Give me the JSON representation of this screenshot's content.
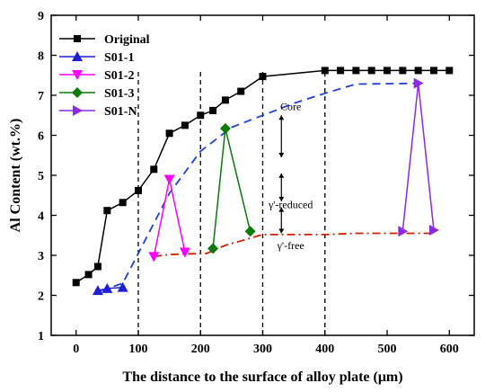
{
  "chart_data": {
    "type": "line",
    "xlabel": "The distance to the surface of alloy plate (μm)",
    "ylabel": "Al Content (wt.%)",
    "xlim": [
      -40,
      640
    ],
    "ylim": [
      1,
      9
    ],
    "xticks": [
      0,
      100,
      200,
      300,
      400,
      500,
      600
    ],
    "yticks": [
      1,
      2,
      3,
      4,
      5,
      6,
      7,
      8,
      9
    ],
    "legend": {
      "position": "top-left"
    },
    "series": [
      {
        "name": "Original",
        "color": "#000000",
        "marker": "square",
        "points": [
          [
            0,
            2.32
          ],
          [
            20,
            2.52
          ],
          [
            35,
            2.72
          ],
          [
            50,
            4.12
          ],
          [
            75,
            4.32
          ],
          [
            100,
            4.62
          ],
          [
            125,
            5.15
          ],
          [
            150,
            6.05
          ],
          [
            175,
            6.25
          ],
          [
            200,
            6.5
          ],
          [
            220,
            6.62
          ],
          [
            240,
            6.88
          ],
          [
            265,
            7.1
          ],
          [
            300,
            7.47
          ],
          [
            400,
            7.62
          ],
          [
            425,
            7.62
          ],
          [
            450,
            7.62
          ],
          [
            475,
            7.62
          ],
          [
            500,
            7.62
          ],
          [
            525,
            7.62
          ],
          [
            550,
            7.62
          ],
          [
            575,
            7.62
          ],
          [
            600,
            7.62
          ]
        ]
      },
      {
        "name": "S01-1",
        "color": "#1f1fd6",
        "marker": "triangle-up",
        "points": [
          [
            35,
            2.12
          ],
          [
            50,
            2.17
          ],
          [
            75,
            2.2
          ]
        ]
      },
      {
        "name": "S01-2",
        "color": "#ff00ff",
        "marker": "triangle-down",
        "points": [
          [
            125,
            2.97
          ],
          [
            150,
            4.9
          ],
          [
            175,
            3.08
          ]
        ]
      },
      {
        "name": "S01-3",
        "color": "#0a7a0a",
        "marker": "diamond",
        "points": [
          [
            220,
            3.17
          ],
          [
            240,
            6.17
          ],
          [
            280,
            3.6
          ]
        ]
      },
      {
        "name": "S01-N",
        "color": "#8a2be2",
        "marker": "triangle-right",
        "points": [
          [
            525,
            3.6
          ],
          [
            550,
            7.3
          ],
          [
            575,
            3.63
          ]
        ]
      }
    ],
    "reference_curves": [
      {
        "role": "core",
        "color": "#1f3fd6",
        "style": "dashed",
        "points": [
          [
            40,
            2.12
          ],
          [
            75,
            2.3
          ],
          [
            100,
            3.05
          ],
          [
            150,
            4.55
          ],
          [
            200,
            5.6
          ],
          [
            250,
            6.2
          ],
          [
            300,
            6.5
          ],
          [
            350,
            6.8
          ],
          [
            400,
            7.05
          ],
          [
            450,
            7.28
          ],
          [
            550,
            7.3
          ]
        ]
      },
      {
        "role": "gamma-prime-free",
        "color": "#cc2200",
        "style": "dash-dot",
        "points": [
          [
            125,
            2.97
          ],
          [
            150,
            3.02
          ],
          [
            210,
            3.05
          ],
          [
            240,
            3.25
          ],
          [
            300,
            3.52
          ],
          [
            400,
            3.52
          ],
          [
            450,
            3.55
          ],
          [
            575,
            3.55
          ]
        ]
      }
    ],
    "vertical_lines_x": [
      100,
      200,
      300,
      400
    ],
    "annotations": [
      {
        "text": "Core",
        "x": 345,
        "y": 6.72
      },
      {
        "text": "γ'-reduced",
        "x": 345,
        "y": 4.27
      },
      {
        "text": "γ'-free",
        "x": 345,
        "y": 3.25
      }
    ],
    "annotation_arrows": [
      {
        "x": 330,
        "from": 5.45,
        "to": 6.5
      },
      {
        "x": 330,
        "from": 5.05,
        "to": 4.35
      },
      {
        "x": 330,
        "from": 4.2,
        "to": 3.55
      }
    ]
  }
}
